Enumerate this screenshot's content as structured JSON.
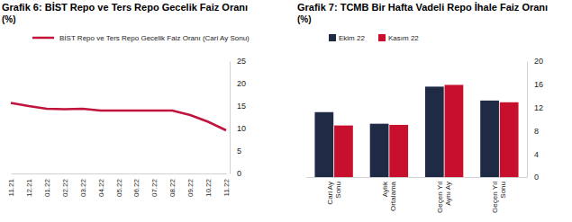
{
  "chart_data": [
    {
      "type": "line",
      "title": "Grafik 6:  BİST Repo ve Ters Repo Gecelik Faiz Oranı",
      "subtitle": "(%)",
      "categories": [
        "11.21",
        "12.21",
        "01.22",
        "02.22",
        "03.22",
        "04.22",
        "05.22",
        "06.22",
        "07.22",
        "08.22",
        "09.22",
        "10.22",
        "11.22"
      ],
      "series": [
        {
          "name": "BİST Repo ve Ters Repo Gecelik Faiz Oranı (Cari Ay Sonu)",
          "color": "#c0143c",
          "values": [
            15.7,
            15.0,
            14.4,
            14.3,
            14.4,
            14.0,
            14.0,
            14.0,
            14.0,
            14.0,
            13.0,
            11.5,
            9.6
          ]
        }
      ],
      "ylim": [
        0,
        25
      ],
      "yticks": [
        0,
        5,
        10,
        15,
        20,
        25
      ],
      "legend": "top"
    },
    {
      "type": "bar",
      "title": "Grafik 7: TCMB Bir Hafta Vadeli Repo İhale Faiz Oranı",
      "subtitle": "(%)",
      "categories": [
        "Cari Ay Sonu",
        "Aylık Ortalama",
        "Geçen Yıl Aynı Ay",
        "Geçen Yıl Sonu"
      ],
      "series": [
        {
          "name": "Ekim 22",
          "color": "#1f2a44",
          "values": [
            11.2,
            9.2,
            15.6,
            13.2
          ]
        },
        {
          "name": "Kasım 22",
          "color": "#c8102e",
          "values": [
            8.9,
            9.0,
            15.9,
            12.9
          ]
        }
      ],
      "ylim": [
        0,
        20
      ],
      "yticks": [
        0,
        4,
        8,
        12,
        16,
        20
      ],
      "legend": "top"
    }
  ]
}
